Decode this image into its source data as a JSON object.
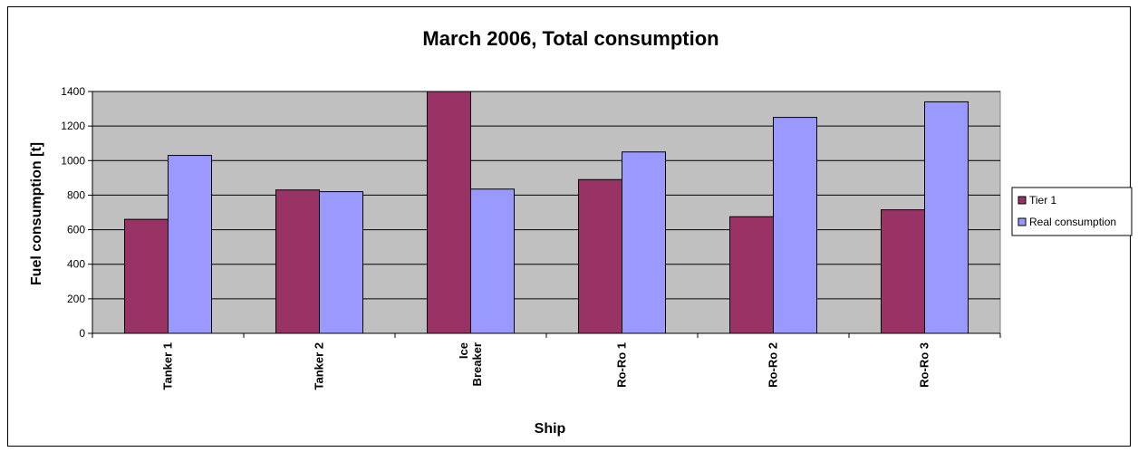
{
  "chart_data": {
    "type": "bar",
    "title": "March 2006, Total consumption",
    "xlabel": "Ship",
    "ylabel": "Fuel consumption [t]",
    "ylim": [
      0,
      1400
    ],
    "yticks": [
      0,
      200,
      400,
      600,
      800,
      1000,
      1200,
      1400
    ],
    "grid": true,
    "legend_position": "right",
    "categories": [
      "Tanker 1",
      "Tanker 2",
      "Ice Breaker",
      "Ro-Ro 1",
      "Ro-Ro 2",
      "Ro-Ro 3"
    ],
    "category_lines": [
      [
        "Tanker 1"
      ],
      [
        "Tanker 2"
      ],
      [
        "Ice",
        "Breaker"
      ],
      [
        "Ro-Ro 1"
      ],
      [
        "Ro-Ro 2"
      ],
      [
        "Ro-Ro 3"
      ]
    ],
    "series": [
      {
        "name": "Tier 1",
        "color": "#993366",
        "values": [
          660,
          830,
          1410,
          890,
          675,
          715
        ]
      },
      {
        "name": "Real consumption",
        "color": "#9999ff",
        "values": [
          1030,
          820,
          835,
          1050,
          1250,
          1340
        ]
      }
    ],
    "plot_background": "#c0c0c0"
  }
}
